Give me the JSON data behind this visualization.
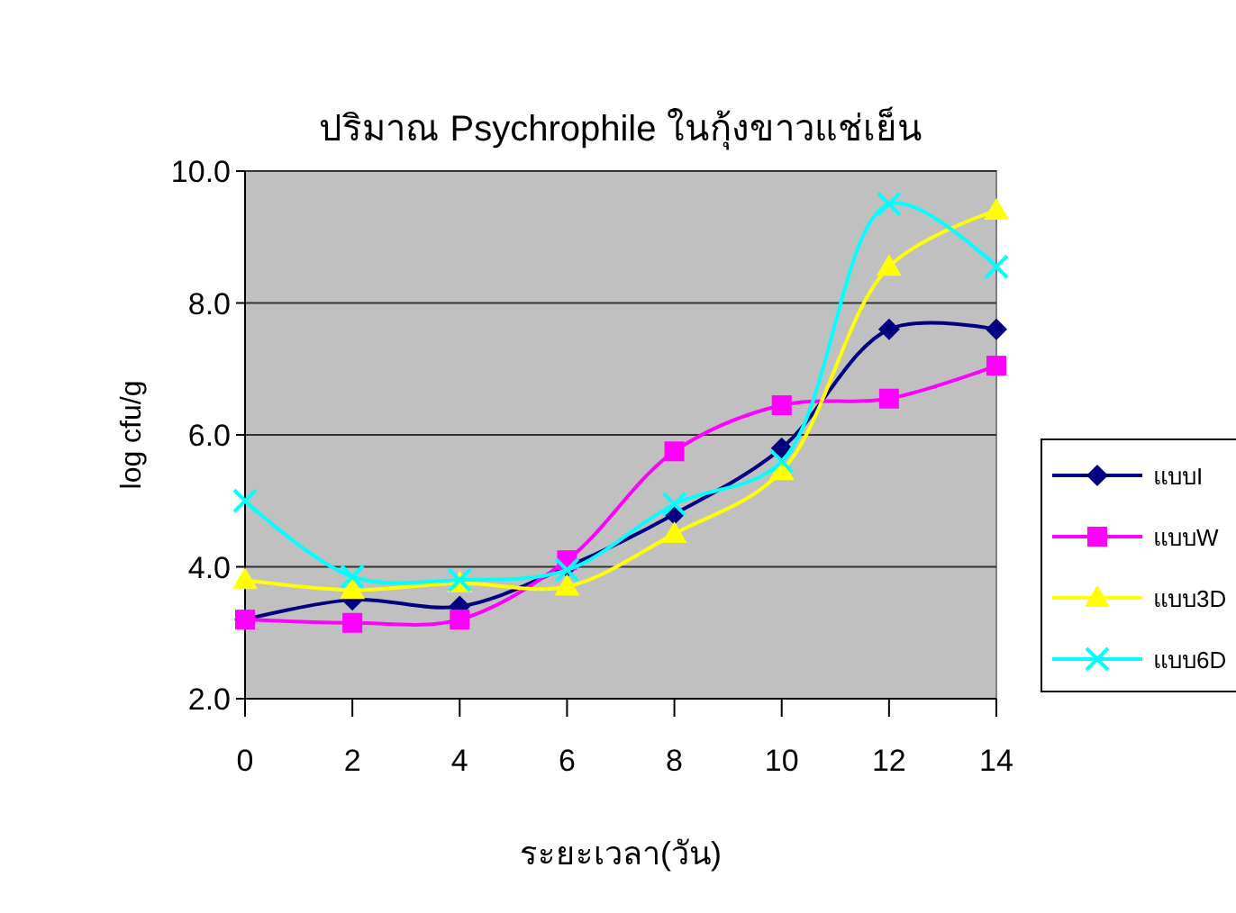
{
  "chart_data": {
    "type": "line",
    "title": "ปริมาณ Psychrophile ในกุ้งขาวแช่เย็น",
    "xlabel": "ระยะเวลา(วัน)",
    "ylabel": "log cfu/g",
    "x": [
      0,
      2,
      4,
      6,
      8,
      10,
      12,
      14
    ],
    "xlim": [
      0,
      14
    ],
    "xticks": [
      0,
      2,
      4,
      6,
      8,
      10,
      12,
      14
    ],
    "ylim": [
      2,
      10
    ],
    "yticks": [
      {
        "value": 2,
        "label": "2.0"
      },
      {
        "value": 4,
        "label": "4.0"
      },
      {
        "value": 6,
        "label": "6.0"
      },
      {
        "value": 8,
        "label": "8.0"
      },
      {
        "value": 10,
        "label": "10.0"
      }
    ],
    "grid": "y",
    "legend": "right",
    "series": [
      {
        "name": "แบบI",
        "color": "#000080",
        "marker": "diamond",
        "values": [
          3.2,
          3.5,
          3.4,
          4.0,
          4.8,
          5.8,
          7.6,
          7.6
        ]
      },
      {
        "name": "แบบW",
        "color": "#ff00ff",
        "marker": "square",
        "values": [
          3.2,
          3.15,
          3.2,
          4.1,
          5.75,
          6.45,
          6.55,
          7.05
        ]
      },
      {
        "name": "แบบ3D",
        "color": "#ffff00",
        "marker": "triangle",
        "values": [
          3.8,
          3.65,
          3.75,
          3.7,
          4.5,
          5.45,
          8.55,
          9.4
        ]
      },
      {
        "name": "แบบ6D",
        "color": "#00ffff",
        "marker": "cross",
        "values": [
          5.0,
          3.85,
          3.8,
          3.95,
          4.95,
          5.6,
          9.5,
          8.55
        ]
      }
    ]
  }
}
